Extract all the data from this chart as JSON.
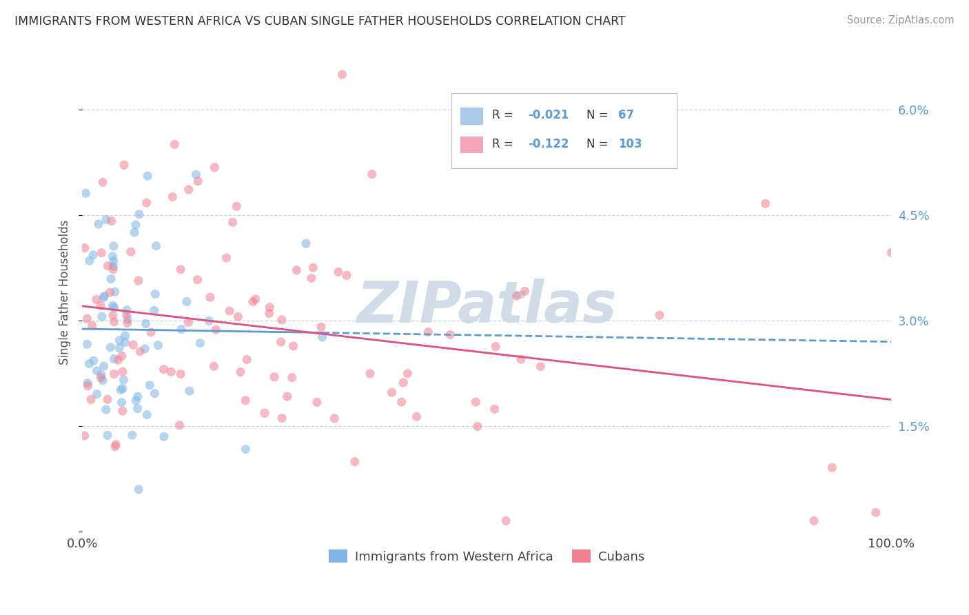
{
  "title": "IMMIGRANTS FROM WESTERN AFRICA VS CUBAN SINGLE FATHER HOUSEHOLDS CORRELATION CHART",
  "source": "Source: ZipAtlas.com",
  "ylabel": "Single Father Households",
  "xlim": [
    0,
    100
  ],
  "ylim": [
    0,
    6.8
  ],
  "yticks": [
    0,
    1.5,
    3.0,
    4.5,
    6.0
  ],
  "ytick_labels": [
    "",
    "1.5%",
    "3.0%",
    "4.5%",
    "6.0%"
  ],
  "xtick_labels": [
    "0.0%",
    "100.0%"
  ],
  "blue_color": "#aac9ea",
  "pink_color": "#f4a7b9",
  "blue_dot_color": "#7eb3e3",
  "pink_dot_color": "#f08090",
  "trend_blue_color": "#5b9bd5",
  "trend_pink_color": "#e05080",
  "watermark_color": "#d0dde8",
  "background_color": "#ffffff",
  "grid_color": "#c8d4dc",
  "R_blue": -0.021,
  "N_blue": 67,
  "R_pink": -0.122,
  "N_pink": 103
}
